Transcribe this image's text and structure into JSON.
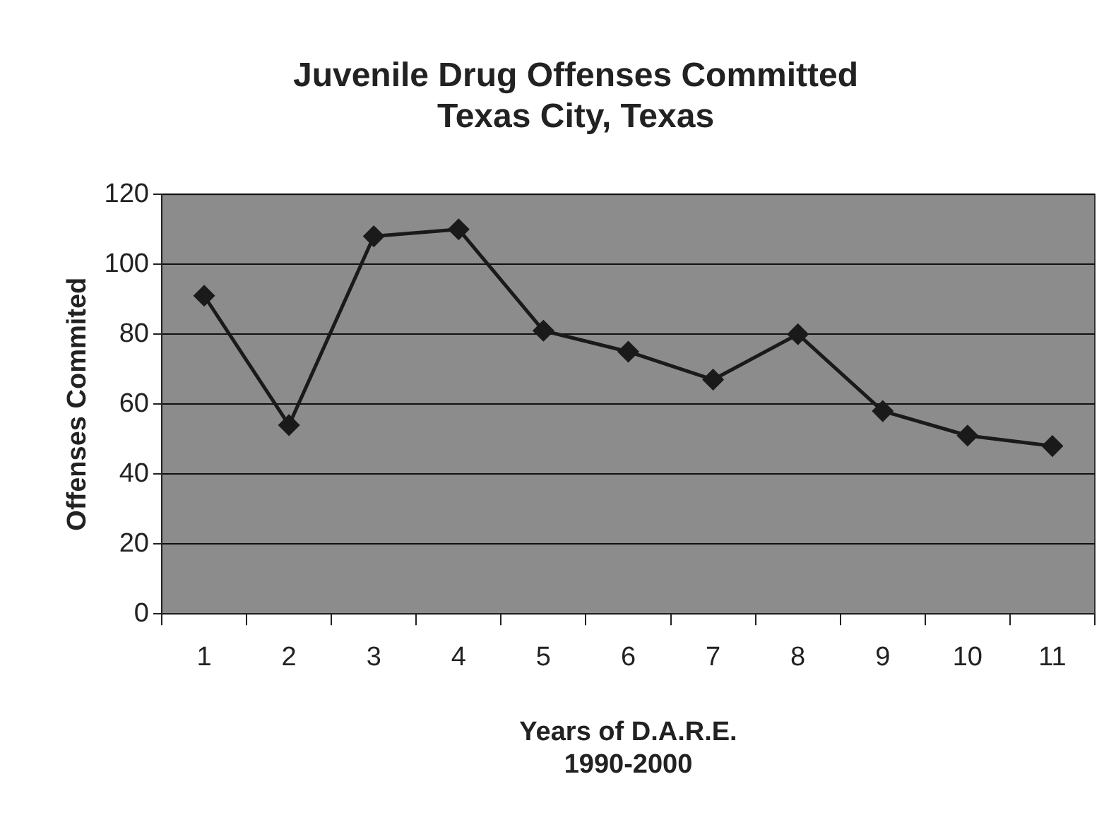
{
  "chart_data": {
    "type": "line",
    "title": "Juvenile Drug Offenses Committed\nTexas City, Texas",
    "xlabel": "Years of D.A.R.E.\n1990-2000",
    "ylabel": "Offenses Commited",
    "categories": [
      "1",
      "2",
      "3",
      "4",
      "5",
      "6",
      "7",
      "8",
      "9",
      "10",
      "11"
    ],
    "series": [
      {
        "color": "#1a1a1a",
        "values": [
          91,
          54,
          108,
          110,
          81,
          75,
          67,
          80,
          58,
          51,
          48
        ]
      }
    ],
    "ylim": [
      0,
      120
    ],
    "yticks": [
      0,
      20,
      40,
      60,
      80,
      100,
      120
    ],
    "grid": "y",
    "legend": false,
    "marker": "diamond",
    "line_style": "solid"
  }
}
